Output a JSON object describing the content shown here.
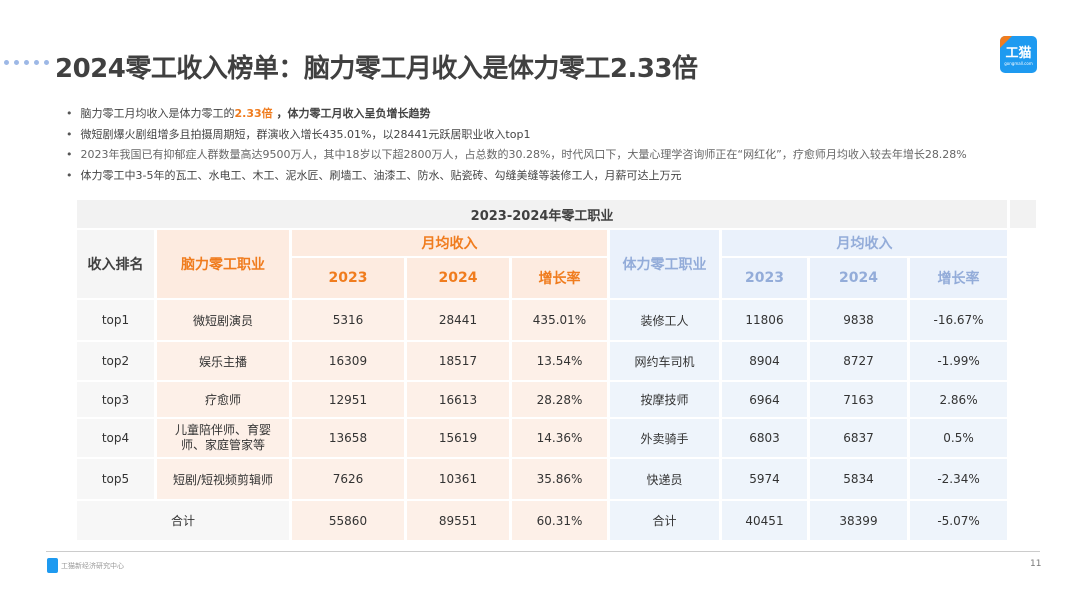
{
  "title": "2024零工收入榜单：脑力零工月收入是体力零工2.33倍",
  "logo": {
    "main": "工猫",
    "sub": "gongmall.com"
  },
  "bullets": [
    {
      "a": "脑力零工月均收入是体力零工的",
      "hl": "2.33倍",
      "b": " ，体力零工月收入呈负增长趋势"
    },
    {
      "text": "微短剧爆火剧组增多且拍摄周期短，群演收入增长435.01%，以28441元跃居职业收入top1"
    },
    {
      "text": "2023年我国已有抑郁症人群数量高达9500万人，其中18岁以下超2800万人，占总数的30.28%，时代风口下，大量心理学咨询师正在“网红化”，疗愈师月均收入较去年增长28.28%"
    },
    {
      "text": "体力零工中3-5年的瓦工、水电工、木工、泥水匠、刷墙工、油漆工、防水、贴瓷砖、勾缝美缝等装修工人，月薪可达上万元"
    }
  ],
  "table": {
    "title": "2023-2024年零工职业",
    "rank_header": "收入排名",
    "mental_header": "脑力零工职业",
    "physical_header": "体力零工职业",
    "income_header": "月均收入",
    "y1": "2023",
    "y2": "2024",
    "rate": "增长率",
    "rows": [
      {
        "rank": "top1",
        "m": "微短剧演员",
        "m23": "5316",
        "m24": "28441",
        "mr": "435.01%",
        "p": "装修工人",
        "p23": "11806",
        "p24": "9838",
        "pr": "-16.67%"
      },
      {
        "rank": "top2",
        "m": "娱乐主播",
        "m23": "16309",
        "m24": "18517",
        "mr": "13.54%",
        "p": "网约车司机",
        "p23": "8904",
        "p24": "8727",
        "pr": "-1.99%"
      },
      {
        "rank": "top3",
        "m": "疗愈师",
        "m23": "12951",
        "m24": "16613",
        "mr": "28.28%",
        "p": "按摩技师",
        "p23": "6964",
        "p24": "7163",
        "pr": "2.86%"
      },
      {
        "rank": "top4",
        "m": "儿童陪伴师、育婴师、家庭管家等",
        "m23": "13658",
        "m24": "15619",
        "mr": "14.36%",
        "p": "外卖骑手",
        "p23": "6803",
        "p24": "6837",
        "pr": "0.5%"
      },
      {
        "rank": "top5",
        "m": "短剧/短视频剪辑师",
        "m23": "7626",
        "m24": "10361",
        "mr": "35.86%",
        "p": "快递员",
        "p23": "5974",
        "p24": "5834",
        "pr": "-2.34%"
      }
    ],
    "total": {
      "m": "合计",
      "m23": "55860",
      "m24": "89551",
      "mr": "60.31%",
      "p": "合计",
      "p23": "40451",
      "p24": "38399",
      "pr": "-5.07%"
    }
  },
  "footer": {
    "org": "工猫新经济研究中心",
    "page": "11"
  }
}
